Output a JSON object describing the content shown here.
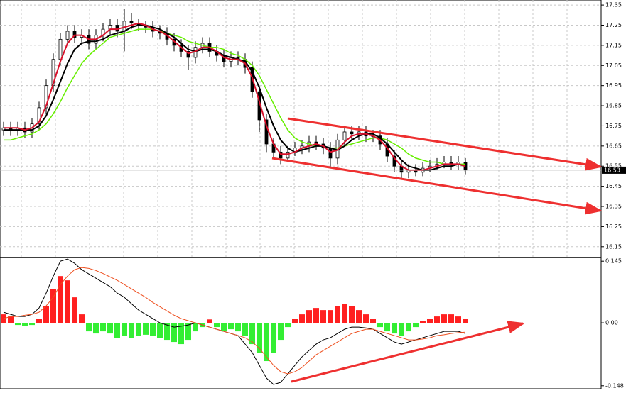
{
  "chart_data": [
    {
      "type": "candlestick",
      "open": [
        16.73,
        16.74,
        16.73,
        16.74,
        16.72,
        16.76,
        16.84,
        16.95,
        17.08,
        17.18,
        17.22,
        17.19,
        17.2,
        17.16,
        17.2,
        17.23,
        17.25,
        17.22,
        17.27,
        17.26,
        17.25,
        17.24,
        17.22,
        17.21,
        17.18,
        17.15,
        17.12,
        17.09,
        17.14,
        17.16,
        17.12,
        17.1,
        17.07,
        17.09,
        17.08,
        17.04,
        16.92,
        16.78,
        16.66,
        16.62,
        16.59,
        16.62,
        16.64,
        16.65,
        16.67,
        16.66,
        16.64,
        16.59,
        16.68,
        16.72,
        16.71,
        16.72,
        16.7,
        16.7,
        16.66,
        16.6,
        16.55,
        16.52,
        16.53,
        16.52,
        16.54,
        16.55,
        16.56,
        16.57,
        16.56,
        16.57
      ],
      "high": [
        16.77,
        16.77,
        16.77,
        16.77,
        16.79,
        16.87,
        16.98,
        17.11,
        17.21,
        17.25,
        17.25,
        17.23,
        17.23,
        17.23,
        17.26,
        17.28,
        17.28,
        17.33,
        17.31,
        17.28,
        17.27,
        17.27,
        17.25,
        17.24,
        17.21,
        17.18,
        17.15,
        17.17,
        17.19,
        17.19,
        17.15,
        17.13,
        17.12,
        17.12,
        17.11,
        17.07,
        16.95,
        16.81,
        16.69,
        16.65,
        16.65,
        16.67,
        16.68,
        16.7,
        16.7,
        16.69,
        16.67,
        16.71,
        16.75,
        16.75,
        16.75,
        16.75,
        16.73,
        16.73,
        16.69,
        16.63,
        16.58,
        16.56,
        16.56,
        16.57,
        16.58,
        16.59,
        16.6,
        16.6,
        16.6,
        16.59
      ],
      "low": [
        16.7,
        16.7,
        16.7,
        16.69,
        16.69,
        16.73,
        16.81,
        16.92,
        17.05,
        17.15,
        17.16,
        17.16,
        17.13,
        17.13,
        17.17,
        17.2,
        17.19,
        17.12,
        17.23,
        17.22,
        17.21,
        17.19,
        17.18,
        17.15,
        17.12,
        17.09,
        17.03,
        17.06,
        17.11,
        17.09,
        17.07,
        17.04,
        17.04,
        17.05,
        17.01,
        16.89,
        16.72,
        16.62,
        16.59,
        16.56,
        16.57,
        16.6,
        16.61,
        16.62,
        16.63,
        16.61,
        16.54,
        16.56,
        16.65,
        16.68,
        16.68,
        16.67,
        16.67,
        16.63,
        16.57,
        16.52,
        16.49,
        16.49,
        16.5,
        16.5,
        16.52,
        16.53,
        16.54,
        16.53,
        16.53,
        16.51
      ],
      "close": [
        16.74,
        16.73,
        16.74,
        16.72,
        16.76,
        16.84,
        16.95,
        17.08,
        17.18,
        17.22,
        17.19,
        17.2,
        17.16,
        17.2,
        17.23,
        17.25,
        17.22,
        17.27,
        17.26,
        17.25,
        17.24,
        17.22,
        17.21,
        17.18,
        17.15,
        17.12,
        17.09,
        17.14,
        17.16,
        17.12,
        17.1,
        17.07,
        17.09,
        17.08,
        17.04,
        16.92,
        16.78,
        16.66,
        16.62,
        16.59,
        16.62,
        16.64,
        16.65,
        16.67,
        16.66,
        16.64,
        16.59,
        16.68,
        16.72,
        16.71,
        16.72,
        16.7,
        16.7,
        16.66,
        16.6,
        16.55,
        16.52,
        16.53,
        16.52,
        16.54,
        16.55,
        16.56,
        16.57,
        16.56,
        16.57,
        16.53
      ],
      "series": [
        {
          "color": "#66ee00",
          "values": [
            16.68,
            16.68,
            16.69,
            16.7,
            16.71,
            16.73,
            16.76,
            16.81,
            16.87,
            16.94,
            17.0,
            17.06,
            17.1,
            17.13,
            17.16,
            17.19,
            17.2,
            17.21,
            17.22,
            17.23,
            17.23,
            17.23,
            17.22,
            17.21,
            17.2,
            17.19,
            17.17,
            17.16,
            17.15,
            17.14,
            17.14,
            17.13,
            17.11,
            17.1,
            17.08,
            17.05,
            17.0,
            16.93,
            16.86,
            16.79,
            16.73,
            16.69,
            16.67,
            16.66,
            16.65,
            16.65,
            16.64,
            16.64,
            16.65,
            16.66,
            16.67,
            16.68,
            16.69,
            16.69,
            16.68,
            16.66,
            16.64,
            16.61,
            16.59,
            16.58,
            16.57,
            16.57,
            16.56,
            16.56,
            16.56,
            16.56
          ]
        },
        {
          "color": "#000000",
          "values": [
            16.73,
            16.73,
            16.73,
            16.73,
            16.73,
            16.75,
            16.8,
            16.88,
            16.97,
            17.06,
            17.13,
            17.16,
            17.17,
            17.17,
            17.18,
            17.2,
            17.21,
            17.22,
            17.24,
            17.25,
            17.25,
            17.24,
            17.23,
            17.21,
            17.19,
            17.16,
            17.13,
            17.12,
            17.13,
            17.13,
            17.12,
            17.1,
            17.09,
            17.08,
            17.07,
            17.02,
            16.94,
            16.84,
            16.75,
            16.68,
            16.64,
            16.62,
            16.63,
            16.64,
            16.65,
            16.65,
            16.64,
            16.63,
            16.65,
            16.68,
            16.7,
            16.71,
            16.71,
            16.69,
            16.66,
            16.62,
            16.58,
            16.55,
            16.54,
            16.53,
            16.53,
            16.54,
            16.55,
            16.55,
            16.56,
            16.55
          ]
        },
        {
          "color": "#d8102a",
          "values": [
            16.74,
            16.74,
            16.74,
            16.73,
            16.74,
            16.77,
            16.85,
            16.96,
            17.07,
            17.16,
            17.2,
            17.2,
            17.18,
            17.18,
            17.2,
            17.23,
            17.23,
            17.24,
            17.25,
            17.26,
            17.25,
            17.23,
            17.22,
            17.2,
            17.17,
            17.14,
            17.11,
            17.12,
            17.14,
            17.14,
            17.12,
            17.09,
            17.08,
            17.08,
            17.06,
            16.99,
            16.87,
            16.75,
            16.66,
            16.61,
            16.61,
            16.62,
            16.64,
            16.65,
            16.66,
            16.65,
            16.62,
            16.63,
            16.67,
            16.7,
            16.71,
            16.71,
            16.7,
            16.68,
            16.64,
            16.59,
            16.55,
            16.53,
            16.53,
            16.53,
            16.54,
            16.55,
            16.56,
            16.56,
            16.56,
            16.55
          ]
        }
      ],
      "last_price": 16.53,
      "ylim": [
        16.1,
        17.375
      ],
      "yticks": [
        16.15,
        16.25,
        16.35,
        16.45,
        16.55,
        16.65,
        16.75,
        16.85,
        16.95,
        17.05,
        17.15,
        17.25,
        17.35
      ],
      "grid": true
    },
    {
      "type": "macd",
      "values": [
        0.02,
        0.015,
        -0.005,
        -0.008,
        -0.005,
        0.01,
        0.04,
        0.08,
        0.11,
        0.1,
        0.06,
        0.02,
        -0.02,
        -0.025,
        -0.02,
        -0.025,
        -0.035,
        -0.03,
        -0.035,
        -0.03,
        -0.028,
        -0.03,
        -0.035,
        -0.04,
        -0.045,
        -0.05,
        -0.04,
        -0.02,
        -0.01,
        0.008,
        -0.01,
        -0.02,
        -0.015,
        -0.02,
        -0.03,
        -0.05,
        -0.07,
        -0.09,
        -0.07,
        -0.04,
        -0.01,
        0.01,
        0.02,
        0.03,
        0.035,
        0.03,
        0.03,
        0.04,
        0.045,
        0.04,
        0.03,
        0.02,
        0.01,
        -0.01,
        -0.02,
        -0.025,
        -0.03,
        -0.02,
        -0.01,
        0.005,
        0.01,
        0.015,
        0.02,
        0.02,
        0.015,
        0.01
      ],
      "colors": [
        "#ff2020",
        "#33ee33"
      ],
      "series": [
        {
          "color": "#000000",
          "values": [
            0.025,
            0.02,
            0.015,
            0.015,
            0.02,
            0.035,
            0.07,
            0.11,
            0.145,
            0.15,
            0.14,
            0.125,
            0.115,
            0.105,
            0.095,
            0.085,
            0.07,
            0.06,
            0.045,
            0.03,
            0.02,
            0.01,
            0.0,
            -0.005,
            -0.01,
            -0.008,
            -0.005,
            0.0,
            -0.005,
            -0.01,
            -0.015,
            -0.02,
            -0.025,
            -0.03,
            -0.05,
            -0.07,
            -0.1,
            -0.13,
            -0.145,
            -0.14,
            -0.12,
            -0.1,
            -0.08,
            -0.065,
            -0.05,
            -0.04,
            -0.035,
            -0.025,
            -0.015,
            -0.01,
            -0.01,
            -0.012,
            -0.015,
            -0.025,
            -0.035,
            -0.045,
            -0.05,
            -0.045,
            -0.04,
            -0.035,
            -0.03,
            -0.025,
            -0.02,
            -0.02,
            -0.02,
            -0.025
          ]
        },
        {
          "color": "#ee5020",
          "values": [
            0.01,
            0.015,
            0.015,
            0.018,
            0.02,
            0.025,
            0.04,
            0.06,
            0.09,
            0.11,
            0.125,
            0.13,
            0.128,
            0.123,
            0.116,
            0.108,
            0.1,
            0.09,
            0.08,
            0.07,
            0.06,
            0.048,
            0.038,
            0.028,
            0.018,
            0.01,
            0.005,
            0.0,
            -0.005,
            -0.01,
            -0.015,
            -0.02,
            -0.025,
            -0.03,
            -0.035,
            -0.045,
            -0.06,
            -0.08,
            -0.1,
            -0.115,
            -0.12,
            -0.115,
            -0.105,
            -0.09,
            -0.075,
            -0.065,
            -0.055,
            -0.045,
            -0.035,
            -0.025,
            -0.02,
            -0.015,
            -0.015,
            -0.02,
            -0.025,
            -0.03,
            -0.035,
            -0.04,
            -0.04,
            -0.038,
            -0.035,
            -0.03,
            -0.028,
            -0.025,
            -0.023,
            -0.022
          ]
        }
      ],
      "ylim": [
        -0.155,
        0.152
      ],
      "yticks": [
        -0.148,
        {
          "value": 0,
          "label": "0.00"
        },
        0.145
      ],
      "grid": false
    }
  ]
}
